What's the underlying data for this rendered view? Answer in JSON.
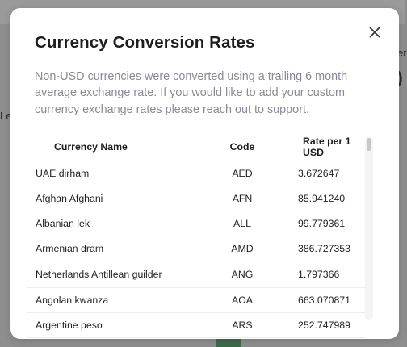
{
  "background": {
    "fragments": [
      "er",
      ")",
      "Le"
    ]
  },
  "modal": {
    "title": "Currency Conversion Rates",
    "description": "Non-USD currencies were converted using a trailing 6 month average exchange rate. If you would like to add your custom currency exchange rates please reach out to support.",
    "close_icon": "close-icon",
    "table": {
      "headers": [
        "Currency Name",
        "Code",
        "Rate per 1 USD"
      ],
      "rows": [
        {
          "name": "UAE dirham",
          "code": "AED",
          "rate": "3.672647"
        },
        {
          "name": "Afghan Afghani",
          "code": "AFN",
          "rate": "85.941240"
        },
        {
          "name": "Albanian lek",
          "code": "ALL",
          "rate": "99.779361"
        },
        {
          "name": "Armenian dram",
          "code": "AMD",
          "rate": "386.727353"
        },
        {
          "name": "Netherlands Antillean guilder",
          "code": "ANG",
          "rate": "1.797366"
        },
        {
          "name": "Angolan kwanza",
          "code": "AOA",
          "rate": "663.070871"
        },
        {
          "name": "Argentine peso",
          "code": "ARS",
          "rate": "252.747989"
        }
      ]
    }
  },
  "colors": {
    "overlay": "#8c8c8c",
    "modal_bg": "#ffffff",
    "title": "#1d1d1f",
    "description": "#8a8a96"
  }
}
